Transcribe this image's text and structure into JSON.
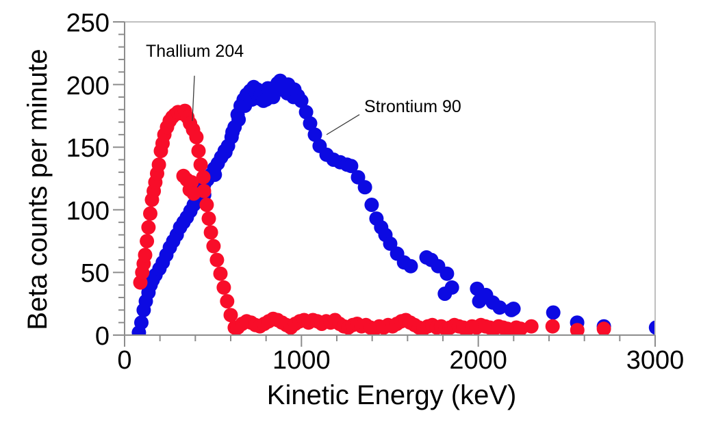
{
  "chart_data": {
    "type": "scatter",
    "title": "",
    "xlabel": "Kinetic Energy (keV)",
    "ylabel": "Beta counts per minute",
    "xlim": [
      0,
      3000
    ],
    "ylim": [
      0,
      250
    ],
    "x_major_ticks": [
      0,
      1000,
      2000,
      3000
    ],
    "x_minor_step": 200,
    "y_major_ticks": [
      0,
      50,
      100,
      150,
      200,
      250
    ],
    "y_minor_step": 10,
    "grid": false,
    "legend": "none",
    "marker_radius_px": 10.5,
    "axis_color": "#8c8c8c",
    "frame_color": "#bfbfbf",
    "leader_color": "#3a3a3a",
    "series": [
      {
        "name": "Strontium 90",
        "color": "#0c0ae2",
        "points": [
          [
            81,
            2
          ],
          [
            95,
            10
          ],
          [
            108,
            20
          ],
          [
            120,
            27
          ],
          [
            135,
            34
          ],
          [
            147,
            40
          ],
          [
            159,
            44
          ],
          [
            175,
            48
          ],
          [
            197,
            53
          ],
          [
            216,
            58
          ],
          [
            236,
            64
          ],
          [
            256,
            70
          ],
          [
            275,
            75
          ],
          [
            295,
            80
          ],
          [
            314,
            86
          ],
          [
            333,
            90
          ],
          [
            352,
            94
          ],
          [
            372,
            99
          ],
          [
            391,
            104
          ],
          [
            410,
            109
          ],
          [
            430,
            115
          ],
          [
            449,
            120
          ],
          [
            450,
            112
          ],
          [
            468,
            124
          ],
          [
            488,
            128
          ],
          [
            507,
            133
          ],
          [
            510,
            128
          ],
          [
            527,
            137
          ],
          [
            546,
            142
          ],
          [
            566,
            147
          ],
          [
            570,
            146
          ],
          [
            585,
            151
          ],
          [
            605,
            158
          ],
          [
            610,
            162
          ],
          [
            622,
            166
          ],
          [
            639,
            176
          ],
          [
            645,
            172
          ],
          [
            656,
            183
          ],
          [
            673,
            188
          ],
          [
            680,
            183
          ],
          [
            690,
            192
          ],
          [
            710,
            195
          ],
          [
            720,
            188
          ],
          [
            730,
            198
          ],
          [
            745,
            193
          ],
          [
            750,
            196
          ],
          [
            760,
            189
          ],
          [
            770,
            192
          ],
          [
            785,
            187
          ],
          [
            790,
            194
          ],
          [
            800,
            188
          ],
          [
            810,
            197
          ],
          [
            820,
            196
          ],
          [
            830,
            193
          ],
          [
            840,
            190
          ],
          [
            850,
            198
          ],
          [
            865,
            201
          ],
          [
            880,
            203
          ],
          [
            885,
            196
          ],
          [
            895,
            199
          ],
          [
            910,
            197
          ],
          [
            920,
            193
          ],
          [
            925,
            200
          ],
          [
            940,
            196
          ],
          [
            955,
            190
          ],
          [
            960,
            196
          ],
          [
            980,
            191
          ],
          [
            999,
            187
          ],
          [
            1026,
            178
          ],
          [
            1049,
            169
          ],
          [
            1076,
            160
          ],
          [
            1103,
            151
          ],
          [
            1142,
            144
          ],
          [
            1181,
            140
          ],
          [
            1219,
            138
          ],
          [
            1258,
            136
          ],
          [
            1281,
            135
          ],
          [
            1320,
            126
          ],
          [
            1359,
            118
          ],
          [
            1397,
            104
          ],
          [
            1424,
            93
          ],
          [
            1451,
            86
          ],
          [
            1475,
            80
          ],
          [
            1502,
            73
          ],
          [
            1541,
            65
          ],
          [
            1580,
            58
          ],
          [
            1618,
            55
          ],
          [
            1707,
            62
          ],
          [
            1734,
            60
          ],
          [
            1773,
            55
          ],
          [
            1811,
            33
          ],
          [
            1823,
            49
          ],
          [
            1851,
            38
          ],
          [
            1993,
            37
          ],
          [
            2005,
            27
          ],
          [
            2044,
            32
          ],
          [
            2082,
            26
          ],
          [
            2121,
            22
          ],
          [
            2187,
            20
          ],
          [
            2199,
            21
          ],
          [
            2424,
            18
          ],
          [
            2559,
            10
          ],
          [
            2710,
            7
          ],
          [
            3005,
            6
          ]
        ]
      },
      {
        "name": "Thallium 204",
        "color": "#f80d29",
        "points": [
          [
            89,
            42
          ],
          [
            100,
            50
          ],
          [
            108,
            57
          ],
          [
            116,
            64
          ],
          [
            126,
            75
          ],
          [
            135,
            86
          ],
          [
            145,
            97
          ],
          [
            155,
            108
          ],
          [
            165,
            115
          ],
          [
            174,
            122
          ],
          [
            184,
            129
          ],
          [
            194,
            136
          ],
          [
            205,
            147
          ],
          [
            215,
            153
          ],
          [
            225,
            160
          ],
          [
            240,
            166
          ],
          [
            255,
            171
          ],
          [
            270,
            174
          ],
          [
            285,
            176
          ],
          [
            302,
            178
          ],
          [
            320,
            177
          ],
          [
            341,
            179
          ],
          [
            355,
            174
          ],
          [
            370,
            169
          ],
          [
            387,
            164
          ],
          [
            406,
            158
          ],
          [
            418,
            147
          ],
          [
            430,
            136
          ],
          [
            445,
            126
          ],
          [
            449,
            115
          ],
          [
            464,
            104
          ],
          [
            476,
            93
          ],
          [
            488,
            82
          ],
          [
            503,
            71
          ],
          [
            522,
            60
          ],
          [
            542,
            49
          ],
          [
            561,
            38
          ],
          [
            580,
            27
          ],
          [
            600,
            16
          ],
          [
            623,
            6
          ],
          [
            333,
            127
          ],
          [
            352,
            124
          ],
          [
            368,
            116
          ],
          [
            379,
            122
          ],
          [
            391,
            113
          ],
          [
            640,
            6
          ],
          [
            665,
            9
          ],
          [
            690,
            11
          ],
          [
            715,
            10
          ],
          [
            740,
            8
          ],
          [
            765,
            7
          ],
          [
            790,
            9
          ],
          [
            815,
            11
          ],
          [
            840,
            13
          ],
          [
            865,
            12
          ],
          [
            890,
            10
          ],
          [
            915,
            8
          ],
          [
            940,
            6
          ],
          [
            965,
            9
          ],
          [
            990,
            11
          ],
          [
            1015,
            12
          ],
          [
            1040,
            10
          ],
          [
            1065,
            12
          ],
          [
            1090,
            11
          ],
          [
            1115,
            9
          ],
          [
            1140,
            11
          ],
          [
            1165,
            10
          ],
          [
            1190,
            12
          ],
          [
            1215,
            9
          ],
          [
            1240,
            7
          ],
          [
            1265,
            6
          ],
          [
            1290,
            8
          ],
          [
            1315,
            9
          ],
          [
            1340,
            7
          ],
          [
            1365,
            8
          ],
          [
            1390,
            6
          ],
          [
            1415,
            5
          ],
          [
            1440,
            7
          ],
          [
            1465,
            6
          ],
          [
            1490,
            8
          ],
          [
            1515,
            7
          ],
          [
            1540,
            9
          ],
          [
            1565,
            11
          ],
          [
            1590,
            12
          ],
          [
            1615,
            10
          ],
          [
            1640,
            8
          ],
          [
            1665,
            6
          ],
          [
            1690,
            5
          ],
          [
            1715,
            7
          ],
          [
            1740,
            8
          ],
          [
            1765,
            6
          ],
          [
            1790,
            7
          ],
          [
            1815,
            5
          ],
          [
            1840,
            6
          ],
          [
            1865,
            8
          ],
          [
            1890,
            7
          ],
          [
            1915,
            6
          ],
          [
            1940,
            5
          ],
          [
            1965,
            7
          ],
          [
            1990,
            6
          ],
          [
            2015,
            8
          ],
          [
            2040,
            7
          ],
          [
            2065,
            6
          ],
          [
            2090,
            5
          ],
          [
            2115,
            7
          ],
          [
            2140,
            6
          ],
          [
            2165,
            5
          ],
          [
            2190,
            4
          ],
          [
            2215,
            6
          ],
          [
            2240,
            5
          ],
          [
            2300,
            7
          ],
          [
            2420,
            7
          ],
          [
            2560,
            4
          ],
          [
            2710,
            5
          ]
        ]
      }
    ],
    "annotations": [
      {
        "text": "Thallium 204",
        "x": 120,
        "y": 234,
        "leader": [
          [
            395,
            207
          ],
          [
            383,
            171
          ]
        ]
      },
      {
        "text": "Strontium 90",
        "x": 1355,
        "y": 190,
        "leader": [
          [
            1328,
            176
          ],
          [
            1142,
            160
          ]
        ]
      }
    ]
  }
}
